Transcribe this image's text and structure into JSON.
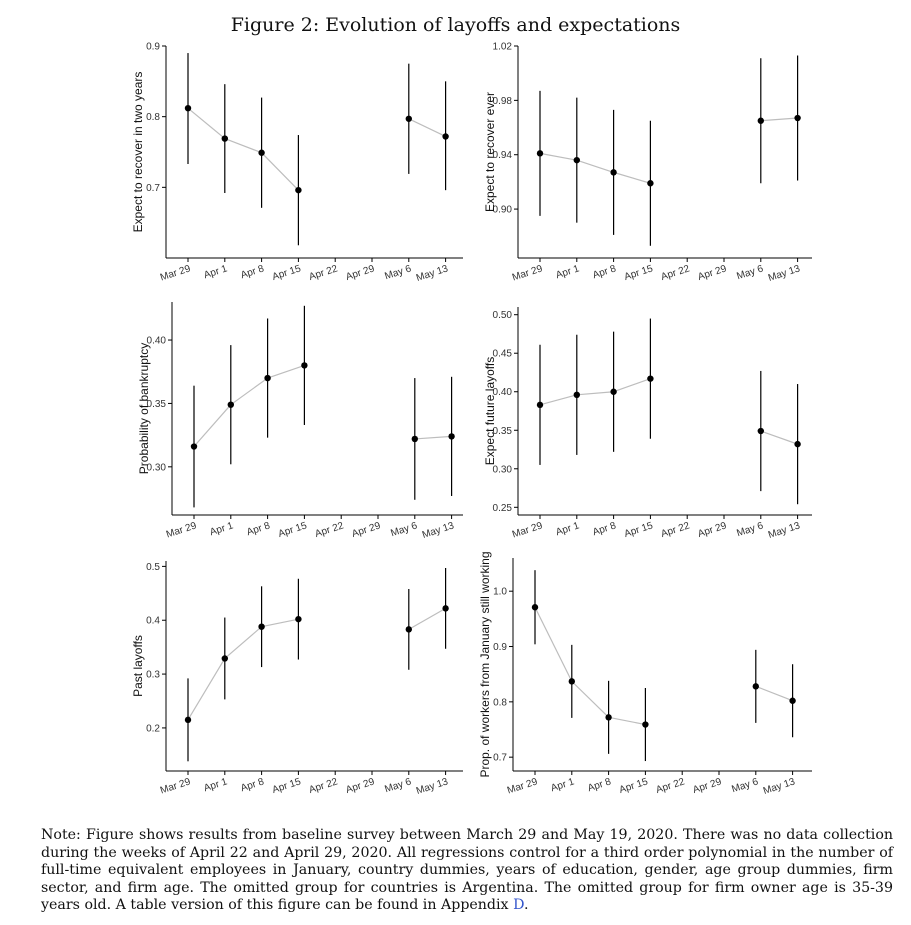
{
  "figure": {
    "title": "Figure 2: Evolution of layoffs and expectations",
    "note": {
      "text": "Note: Figure shows results from baseline survey between March 29 and May 19, 2020. There was no data collection during the weeks of April 22 and April 29, 2020. All regressions control for a third order polynomial in the number of full-time equivalent employees in January, country dummies, years of education, gender, age group dummies, firm sector, and firm age. The omitted group for countries is Argentina. The omitted group for firm owner age is 35-39 years old. A table version of this figure can be found in Appendix ",
      "link": "D",
      "end": "."
    }
  },
  "colors": {
    "point": "#000000",
    "connector": "#bdbdbd",
    "errorbar": "#000000",
    "axis": "#000000"
  },
  "chart_data": [
    {
      "type": "scatter",
      "ylabel": "Expect to recover in two years",
      "categories": [
        "Mar 29",
        "Apr 1",
        "Apr 8",
        "Apr 15",
        "Apr 22",
        "Apr 29",
        "May 6",
        "May 13"
      ],
      "ylim": [
        0.6,
        0.9
      ],
      "yticks": [
        "0.7",
        "0.8",
        "0.9"
      ],
      "estimate": [
        0.812,
        0.769,
        0.749,
        0.696,
        null,
        null,
        0.797,
        0.772
      ],
      "lower": [
        0.733,
        0.692,
        0.671,
        0.618,
        null,
        null,
        0.719,
        0.696
      ],
      "upper": [
        0.89,
        0.846,
        0.827,
        0.774,
        null,
        null,
        0.875,
        0.85
      ]
    },
    {
      "type": "scatter",
      "ylabel": "Expect to recover ever",
      "categories": [
        "Mar 29",
        "Apr 1",
        "Apr 8",
        "Apr 15",
        "Apr 22",
        "Apr 29",
        "May 6",
        "May 13"
      ],
      "ylim": [
        0.864,
        1.02
      ],
      "yticks": [
        "0.90",
        "0.94",
        "0.98",
        "1.02"
      ],
      "estimate": [
        0.941,
        0.936,
        0.927,
        0.919,
        null,
        null,
        0.965,
        0.967
      ],
      "lower": [
        0.895,
        0.89,
        0.881,
        0.873,
        null,
        null,
        0.919,
        0.921
      ],
      "upper": [
        0.987,
        0.982,
        0.973,
        0.965,
        null,
        null,
        1.011,
        1.013
      ]
    },
    {
      "type": "scatter",
      "ylabel": "Probability of bankruptcy",
      "categories": [
        "Mar 29",
        "Apr 1",
        "Apr 8",
        "Apr 15",
        "Apr 22",
        "Apr 29",
        "May 6",
        "May 13"
      ],
      "ylim": [
        0.262,
        0.43
      ],
      "yticks": [
        "0.30",
        "0.35",
        "0.40"
      ],
      "estimate": [
        0.316,
        0.349,
        0.37,
        0.38,
        null,
        null,
        0.322,
        0.324
      ],
      "lower": [
        0.268,
        0.302,
        0.323,
        0.333,
        null,
        null,
        0.274,
        0.277
      ],
      "upper": [
        0.364,
        0.396,
        0.417,
        0.427,
        null,
        null,
        0.37,
        0.371
      ]
    },
    {
      "type": "scatter",
      "ylabel": "Expect future layoffs",
      "categories": [
        "Mar 29",
        "Apr 1",
        "Apr 8",
        "Apr 15",
        "Apr 22",
        "Apr 29",
        "May 6",
        "May 13"
      ],
      "ylim": [
        0.24,
        0.51
      ],
      "yticks": [
        "0.25",
        "0.30",
        "0.35",
        "0.40",
        "0.45",
        "0.50"
      ],
      "estimate": [
        0.383,
        0.396,
        0.4,
        0.417,
        null,
        null,
        0.349,
        0.332
      ],
      "lower": [
        0.305,
        0.318,
        0.322,
        0.339,
        null,
        null,
        0.271,
        0.254
      ],
      "upper": [
        0.461,
        0.474,
        0.478,
        0.495,
        null,
        null,
        0.427,
        0.41
      ]
    },
    {
      "type": "scatter",
      "ylabel": "Past layoffs",
      "categories": [
        "Mar 29",
        "Apr 1",
        "Apr 8",
        "Apr 15",
        "Apr 22",
        "Apr 29",
        "May 6",
        "May 13"
      ],
      "ylim": [
        0.12,
        0.51
      ],
      "yticks": [
        "0.2",
        "0.3",
        "0.4",
        "0.5"
      ],
      "estimate": [
        0.215,
        0.329,
        0.388,
        0.402,
        null,
        null,
        0.383,
        0.422
      ],
      "lower": [
        0.138,
        0.253,
        0.313,
        0.327,
        null,
        null,
        0.308,
        0.347
      ],
      "upper": [
        0.292,
        0.405,
        0.463,
        0.477,
        null,
        null,
        0.458,
        0.497
      ]
    },
    {
      "type": "scatter",
      "ylabel": "Prop. of workers from January still working",
      "categories": [
        "Mar 29",
        "Apr 1",
        "Apr 8",
        "Apr 15",
        "Apr 22",
        "Apr 29",
        "May 6",
        "May 13"
      ],
      "ylim": [
        0.675,
        1.06
      ],
      "yticks": [
        "0.7",
        "0.8",
        "0.9",
        "1.0"
      ],
      "estimate": [
        0.971,
        0.837,
        0.772,
        0.759,
        null,
        null,
        0.828,
        0.802
      ],
      "lower": [
        0.904,
        0.771,
        0.706,
        0.693,
        null,
        null,
        0.762,
        0.736
      ],
      "upper": [
        1.038,
        0.903,
        0.838,
        0.825,
        null,
        null,
        0.894,
        0.868
      ]
    }
  ]
}
